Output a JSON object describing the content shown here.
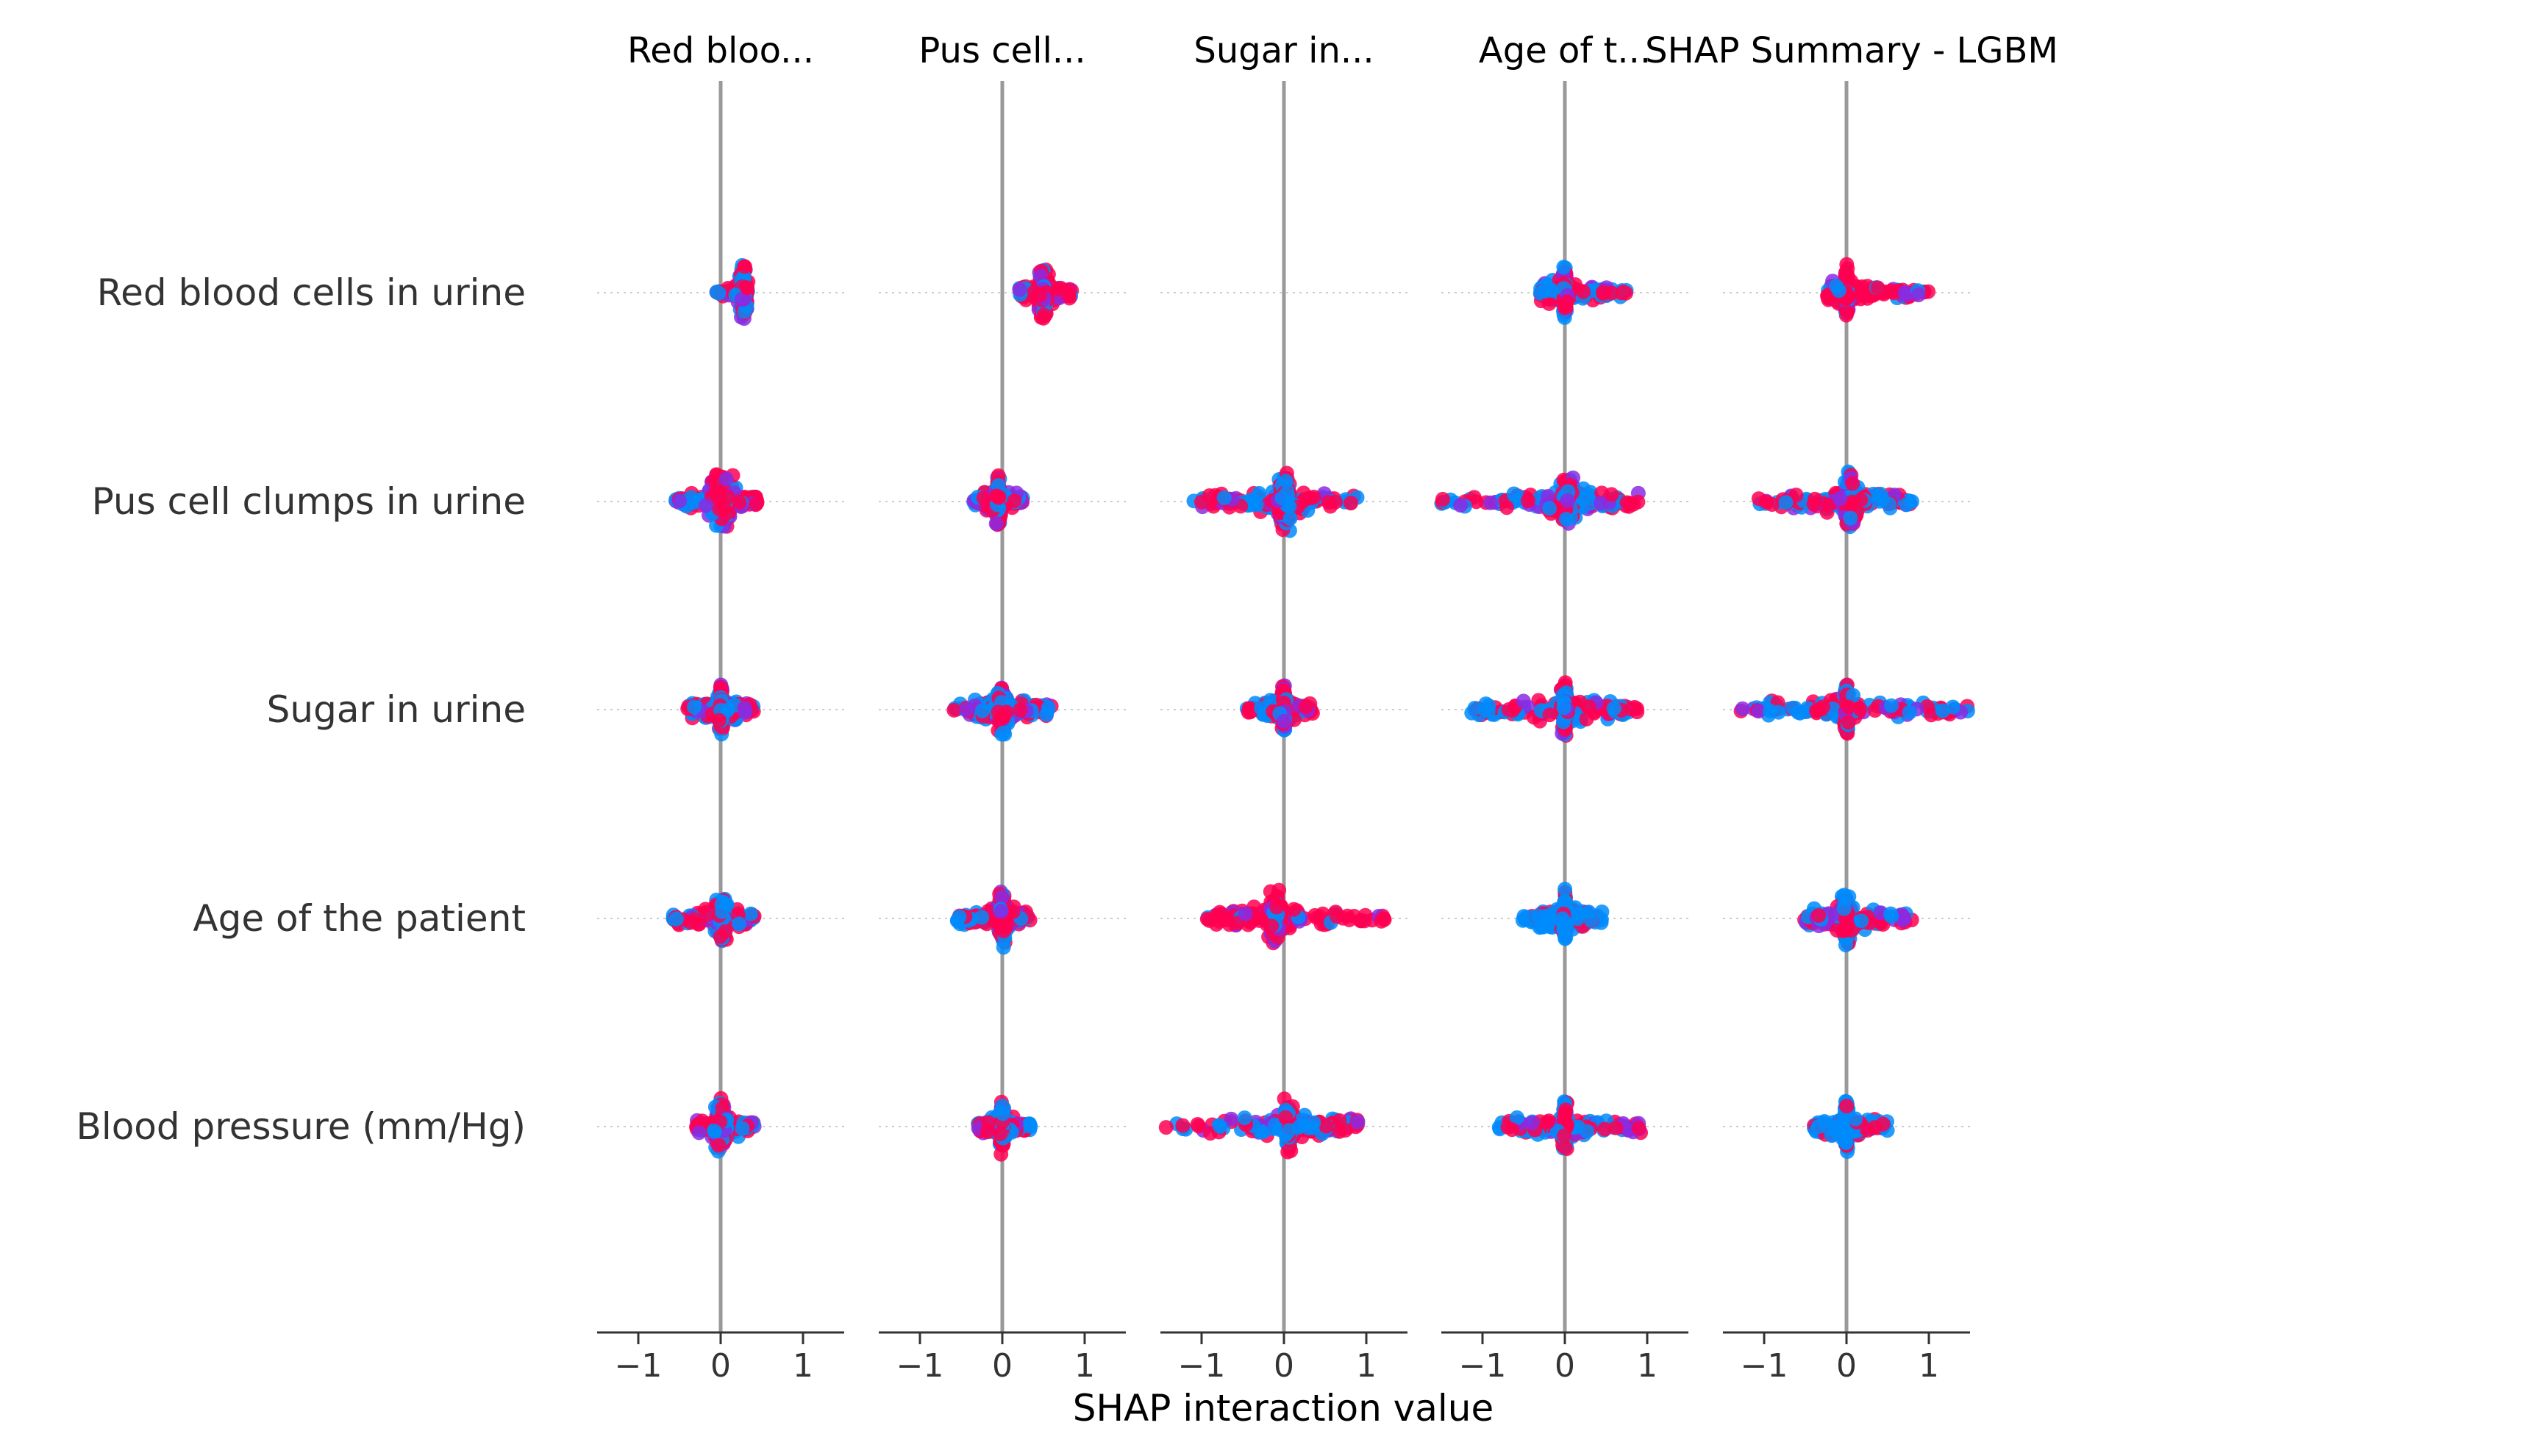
{
  "chart_data": {
    "type": "scatter",
    "title": "SHAP Summary - LGBM",
    "xlabel": "SHAP interaction value",
    "xlim": [
      -1.5,
      1.5
    ],
    "xticks": [
      -1,
      0,
      1
    ],
    "xtick_labels": [
      "−1",
      "0",
      "1"
    ],
    "grid": false,
    "legend": "none",
    "features": [
      "Red blood cells in urine",
      "Pus cell clumps in urine",
      "Sugar in urine",
      "Age of the patient",
      "Blood pressure (mm/Hg)"
    ],
    "panel_titles": [
      "Red bloo...",
      "Pus cell...",
      "Sugar in...",
      "Age of t...",
      ""
    ],
    "colors": {
      "low": "#008bfb",
      "high": "#ff0051",
      "mid": "#8a2be2",
      "zero_line": "#999999",
      "axis": "#333333",
      "text": "#333333"
    },
    "panels": [
      {
        "rows": [
          {
            "min": -0.05,
            "max": 0.3,
            "center": 0.28,
            "spread_y": 0.4,
            "width": 0.06,
            "color": "mix"
          },
          {
            "min": -0.55,
            "max": 0.45,
            "center": 0.0,
            "spread_y": 0.4,
            "width": 0.2,
            "color": "mix"
          },
          {
            "min": -0.4,
            "max": 0.4,
            "center": 0.0,
            "spread_y": 0.4,
            "width": 0.05,
            "color": "mix"
          },
          {
            "min": -0.6,
            "max": 0.45,
            "center": 0.0,
            "spread_y": 0.4,
            "width": 0.1,
            "color": "mix"
          },
          {
            "min": -0.3,
            "max": 0.42,
            "center": 0.0,
            "spread_y": 0.4,
            "width": 0.1,
            "color": "mix"
          }
        ]
      },
      {
        "rows": [
          {
            "min": 0.2,
            "max": 0.85,
            "center": 0.5,
            "spread_y": 0.4,
            "width": 0.09,
            "color": "red"
          },
          {
            "min": -0.35,
            "max": 0.25,
            "center": -0.05,
            "spread_y": 0.4,
            "width": 0.04,
            "color": "mix"
          },
          {
            "min": -0.6,
            "max": 0.6,
            "center": 0.0,
            "spread_y": 0.4,
            "width": 0.08,
            "color": "mix"
          },
          {
            "min": -0.55,
            "max": 0.35,
            "center": 0.0,
            "spread_y": 0.4,
            "width": 0.07,
            "color": "mix"
          },
          {
            "min": -0.3,
            "max": 0.35,
            "center": 0.0,
            "spread_y": 0.4,
            "width": 0.05,
            "color": "mix"
          }
        ]
      },
      {
        "rows": [
          {
            "min": 0.0,
            "max": 0.0,
            "center": 0.0,
            "spread_y": 0.0,
            "width": 0.0,
            "color": "none"
          },
          {
            "min": -1.1,
            "max": 0.9,
            "center": 0.0,
            "spread_y": 0.4,
            "width": 0.1,
            "color": "mix"
          },
          {
            "min": -0.45,
            "max": 0.35,
            "center": 0.0,
            "spread_y": 0.4,
            "width": 0.04,
            "color": "mix"
          },
          {
            "min": -0.95,
            "max": 1.25,
            "center": -0.1,
            "spread_y": 0.4,
            "width": 0.12,
            "color": "red"
          },
          {
            "min": -1.5,
            "max": 0.9,
            "center": 0.05,
            "spread_y": 0.4,
            "width": 0.1,
            "color": "mix"
          }
        ]
      },
      {
        "rows": [
          {
            "min": -0.3,
            "max": 0.75,
            "center": 0.0,
            "spread_y": 0.4,
            "width": 0.04,
            "color": "mix"
          },
          {
            "min": -1.5,
            "max": 0.9,
            "center": 0.05,
            "spread_y": 0.4,
            "width": 0.12,
            "color": "mix"
          },
          {
            "min": -1.2,
            "max": 0.95,
            "center": 0.0,
            "spread_y": 0.4,
            "width": 0.05,
            "color": "mix"
          },
          {
            "min": -0.55,
            "max": 0.45,
            "center": 0.0,
            "spread_y": 0.4,
            "width": 0.03,
            "color": "blue"
          },
          {
            "min": -0.8,
            "max": 0.95,
            "center": 0.0,
            "spread_y": 0.4,
            "width": 0.04,
            "color": "mix"
          }
        ]
      },
      {
        "rows": [
          {
            "min": -0.25,
            "max": 1.0,
            "center": 0.0,
            "spread_y": 0.4,
            "width": 0.03,
            "color": "red"
          },
          {
            "min": -1.1,
            "max": 0.8,
            "center": 0.05,
            "spread_y": 0.4,
            "width": 0.12,
            "color": "mix"
          },
          {
            "min": -1.3,
            "max": 1.5,
            "center": 0.0,
            "spread_y": 0.4,
            "width": 0.04,
            "color": "mix"
          },
          {
            "min": -0.55,
            "max": 0.8,
            "center": 0.0,
            "spread_y": 0.4,
            "width": 0.08,
            "color": "mix"
          },
          {
            "min": -0.4,
            "max": 0.5,
            "center": 0.0,
            "spread_y": 0.4,
            "width": 0.03,
            "color": "blue"
          }
        ]
      }
    ]
  }
}
